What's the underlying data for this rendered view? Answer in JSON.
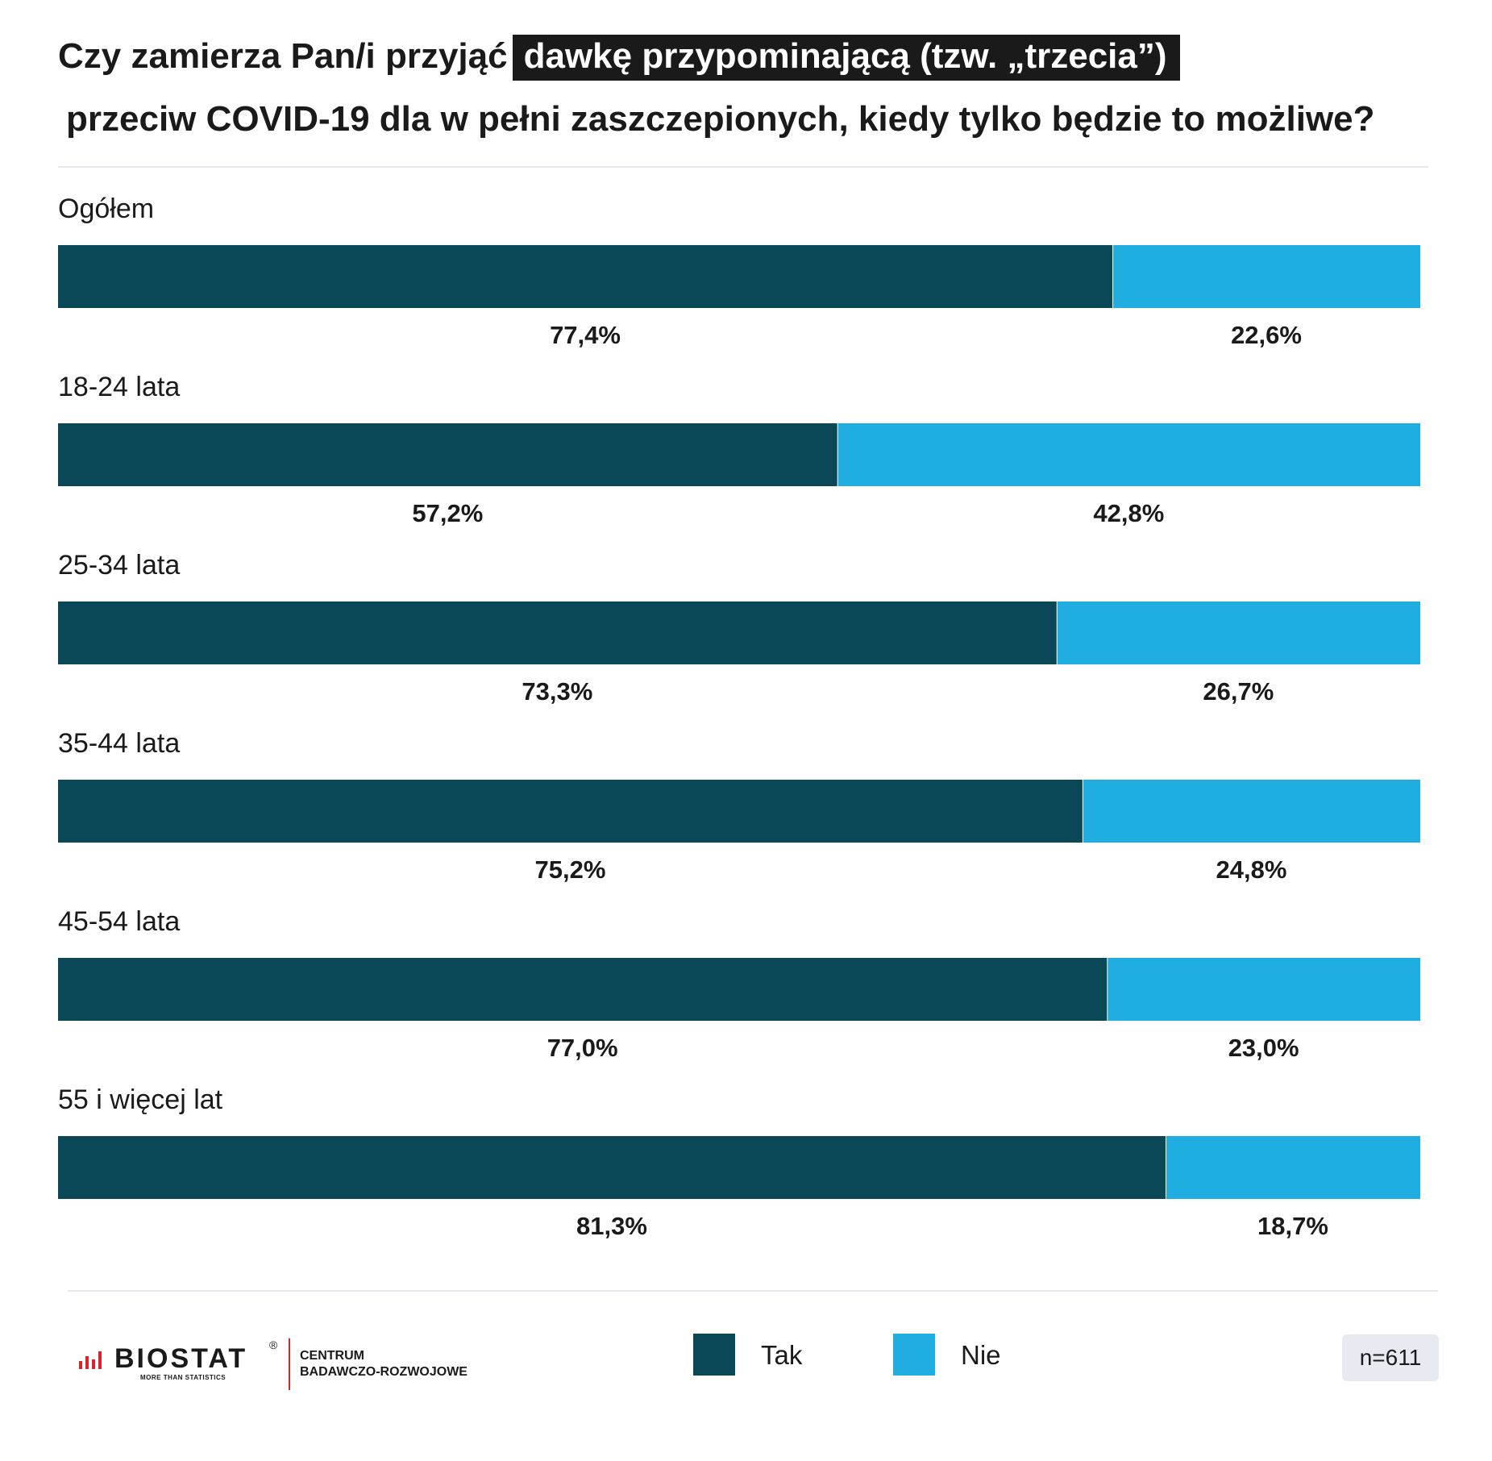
{
  "title": {
    "part1": "Czy zamierza Pan/i przyjąć",
    "highlight": "dawkę przypominającą (tzw. „trzecia”)",
    "line2": "przeciw COVID-19 dla w pełni zaszczepionych, kiedy tylko będzie to możliwe?"
  },
  "colors": {
    "tak": "#0a4858",
    "nie": "#20aee0",
    "highlight_bg": "#1a1a1a"
  },
  "chart_data": {
    "type": "bar",
    "orientation": "horizontal-stacked-100",
    "categories": [
      "Ogółem",
      "18-24 lata",
      "25-34 lata",
      "35-44 lata",
      "45-54 lata",
      "55 i więcej lat"
    ],
    "series": [
      {
        "name": "Tak",
        "values": [
          77.4,
          57.2,
          73.3,
          75.2,
          77.0,
          81.3
        ],
        "labels": [
          "77,4%",
          "57,2%",
          "73,3%",
          "75,2%",
          "77,0%",
          "81,3%"
        ]
      },
      {
        "name": "Nie",
        "values": [
          22.6,
          42.8,
          26.7,
          24.8,
          23.0,
          18.7
        ],
        "labels": [
          "22,6%",
          "42,8%",
          "26,7%",
          "24,8%",
          "23,0%",
          "18,7%"
        ]
      }
    ],
    "xlim": [
      0,
      100
    ],
    "legend": "bottom-center"
  },
  "footer": {
    "logo_word": "BIOSTAT",
    "logo_reg": "®",
    "logo_tagline": "MORE THAN STATISTICS",
    "logo_sub_line1": "CENTRUM",
    "logo_sub_line2": "BADAWCZO-ROZWOJOWE",
    "legend_tak": "Tak",
    "legend_nie": "Nie",
    "n": "n=611"
  }
}
